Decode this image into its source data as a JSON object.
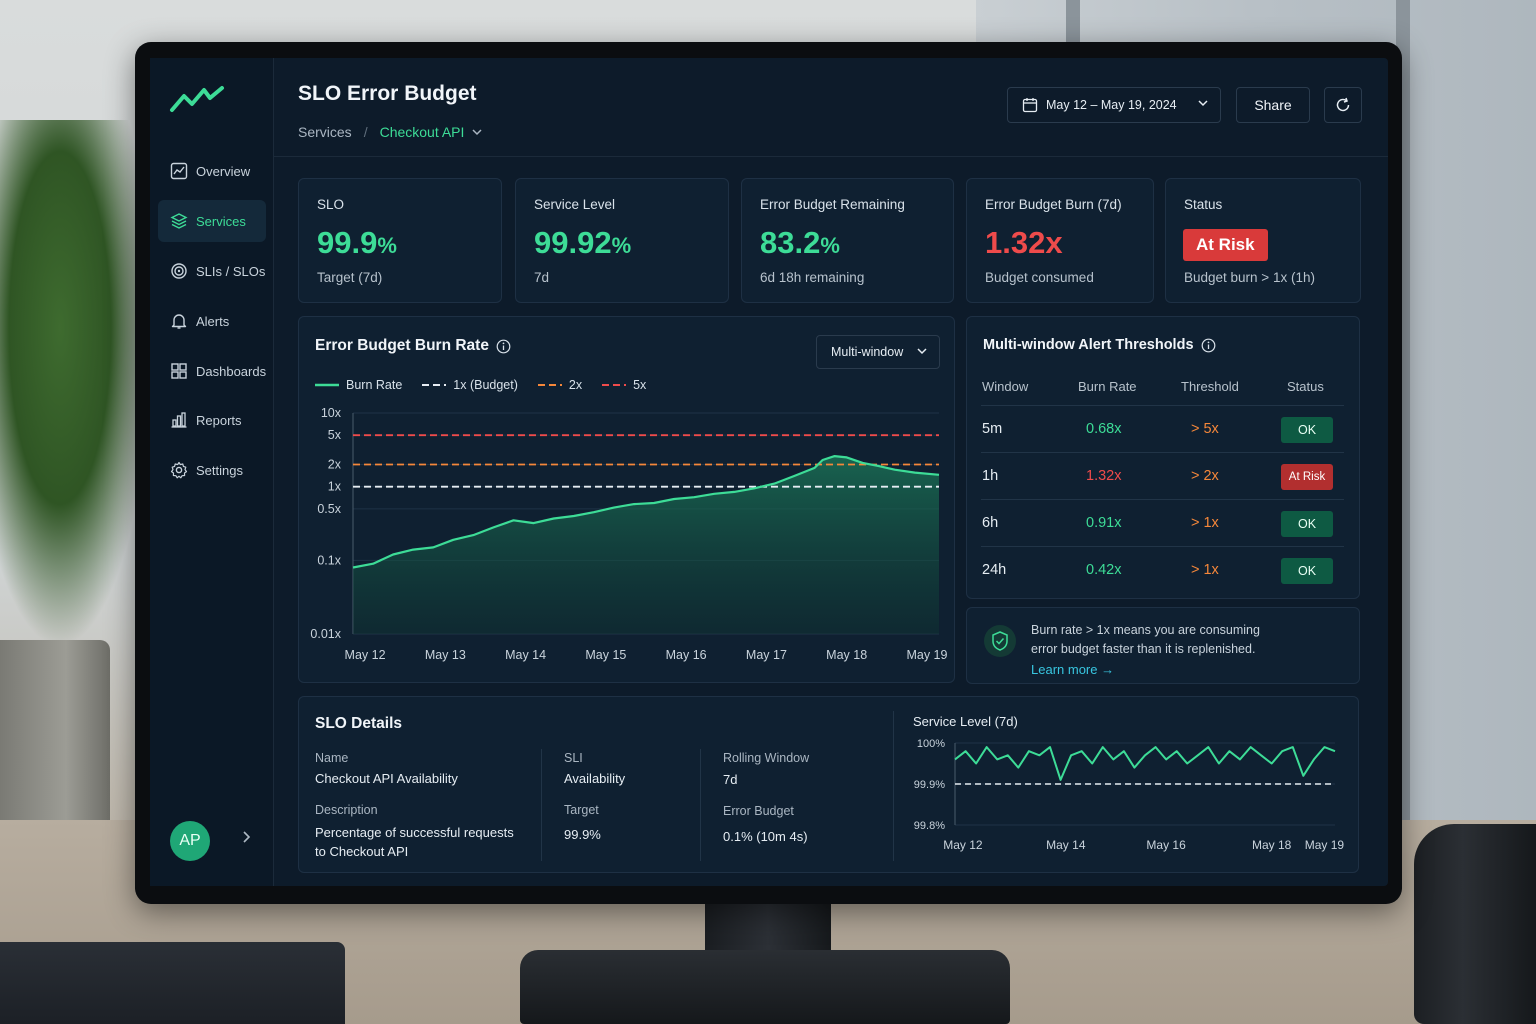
{
  "app": {
    "title": "SLO Error Budget",
    "breadcrumb": {
      "root": "Services",
      "separator": "/",
      "current": "Checkout API"
    },
    "date_range": "May 12 – May 19, 2024",
    "share_label": "Share",
    "accent_color": "#3ddc97",
    "danger_color": "#ef4b4b"
  },
  "sidebar": {
    "items": [
      {
        "label": "Overview",
        "icon": "chart-box-icon",
        "active": false
      },
      {
        "label": "Services",
        "icon": "layers-icon",
        "active": true
      },
      {
        "label": "SLIs / SLOs",
        "icon": "target-icon",
        "active": false
      },
      {
        "label": "Alerts",
        "icon": "bell-icon",
        "active": false
      },
      {
        "label": "Dashboards",
        "icon": "grid-icon",
        "active": false
      },
      {
        "label": "Reports",
        "icon": "bar-chart-icon",
        "active": false
      },
      {
        "label": "Settings",
        "icon": "gear-icon",
        "active": false
      }
    ],
    "user_initials": "AP"
  },
  "stats": [
    {
      "label": "SLO",
      "value": "99.9",
      "unit": "%",
      "sub": "Target (7d)",
      "tone": "green"
    },
    {
      "label": "Service Level",
      "value": "99.92",
      "unit": "%",
      "sub": "7d",
      "tone": "green"
    },
    {
      "label": "Error Budget Remaining",
      "value": "83.2",
      "unit": "%",
      "sub": "6d 18h remaining",
      "tone": "green"
    },
    {
      "label": "Error Budget Burn (7d)",
      "value": "1.32x",
      "unit": "",
      "sub": "Budget consumed",
      "tone": "red"
    },
    {
      "label": "Status",
      "badge": "At Risk",
      "sub": "Budget burn > 1x (1h)"
    }
  ],
  "burn_chart": {
    "title": "Error Budget Burn Rate",
    "window_select": "Multi-window",
    "legend": [
      "Burn Rate",
      "1x (Budget)",
      "2x",
      "5x"
    ]
  },
  "thresholds": {
    "title": "Multi-window Alert Thresholds",
    "columns": [
      "Window",
      "Burn Rate",
      "Threshold",
      "Status"
    ],
    "rows": [
      {
        "window": "5m",
        "burn": "0.68x",
        "threshold": "> 5x",
        "status": "OK",
        "burn_tone": "green"
      },
      {
        "window": "1h",
        "burn": "1.32x",
        "threshold": "> 2x",
        "status": "At Risk",
        "burn_tone": "red"
      },
      {
        "window": "6h",
        "burn": "0.91x",
        "threshold": "> 1x",
        "status": "OK",
        "burn_tone": "green"
      },
      {
        "window": "24h",
        "burn": "0.42x",
        "threshold": "> 1x",
        "status": "OK",
        "burn_tone": "green"
      }
    ],
    "note_line1": "Burn rate > 1x means you are consuming",
    "note_line2": "error budget faster than it is replenished.",
    "learn_more": "Learn more →"
  },
  "details": {
    "title": "SLO Details",
    "name_label": "Name",
    "name": "Checkout API Availability",
    "sli_label": "SLI",
    "sli": "Availability",
    "window_label": "Rolling Window",
    "window": "7d",
    "description_label": "Description",
    "description_line1": "Percentage of successful requests",
    "description_line2": "to Checkout API",
    "target_label": "Target",
    "target": "99.9%",
    "budget_label": "Error Budget",
    "budget": "0.1% (10m 4s)"
  },
  "chart_data": [
    {
      "type": "line",
      "title": "Error Budget Burn Rate",
      "scale": "log",
      "x_ticks": [
        "May 12",
        "May 13",
        "May 14",
        "May 15",
        "May 16",
        "May 17",
        "May 18",
        "May 19"
      ],
      "y_ticks": [
        "10x",
        "5x",
        "2x",
        "1x",
        "0.5x",
        "0.1x",
        "0.01x"
      ],
      "y_tick_values": [
        10,
        5,
        2,
        1,
        0.5,
        0.1,
        0.01
      ],
      "ylim": [
        0.01,
        10
      ],
      "series": [
        {
          "name": "Burn Rate",
          "color": "#3ddc97",
          "fill": true,
          "x": [
            12.0,
            12.25,
            12.5,
            12.75,
            13.0,
            13.25,
            13.5,
            13.75,
            14.0,
            14.25,
            14.5,
            14.75,
            15.0,
            15.25,
            15.5,
            15.75,
            16.0,
            16.25,
            16.5,
            16.75,
            17.0,
            17.25,
            17.5,
            17.75,
            17.85,
            18.0,
            18.15,
            18.35,
            18.55,
            18.75,
            19.0,
            19.3
          ],
          "y": [
            0.08,
            0.09,
            0.12,
            0.14,
            0.15,
            0.19,
            0.22,
            0.28,
            0.35,
            0.32,
            0.37,
            0.4,
            0.45,
            0.52,
            0.58,
            0.6,
            0.68,
            0.72,
            0.8,
            0.85,
            0.95,
            1.1,
            1.4,
            1.8,
            2.3,
            2.6,
            2.5,
            2.1,
            1.9,
            1.7,
            1.55,
            1.45
          ]
        }
      ],
      "reference_lines": [
        {
          "name": "1x (Budget)",
          "value": 1,
          "color": "#e6edf3",
          "style": "dashed"
        },
        {
          "name": "2x",
          "value": 2,
          "color": "#f5873a",
          "style": "dashed"
        },
        {
          "name": "5x",
          "value": 5,
          "color": "#ef4b4b",
          "style": "dashed"
        }
      ],
      "grid": true,
      "legend_position": "top-left"
    },
    {
      "type": "line",
      "title": "Service Level (7d)",
      "x_ticks": [
        "May 12",
        "May 14",
        "May 16",
        "May 18",
        "May 19"
      ],
      "y_ticks": [
        "100%",
        "99.9%",
        "99.8%"
      ],
      "ylim": [
        99.8,
        100
      ],
      "series": [
        {
          "name": "Service Level",
          "color": "#3ddc97",
          "x": [
            12.0,
            12.2,
            12.4,
            12.6,
            12.8,
            13.0,
            13.2,
            13.4,
            13.6,
            13.8,
            14.0,
            14.2,
            14.4,
            14.6,
            14.8,
            15.0,
            15.2,
            15.4,
            15.6,
            15.8,
            16.0,
            16.2,
            16.4,
            16.6,
            16.8,
            17.0,
            17.2,
            17.4,
            17.6,
            17.8,
            18.0,
            18.2,
            18.4,
            18.6,
            18.8,
            19.0,
            19.2
          ],
          "y": [
            99.96,
            99.98,
            99.95,
            99.99,
            99.96,
            99.97,
            99.94,
            99.98,
            99.97,
            99.99,
            99.91,
            99.97,
            99.98,
            99.95,
            99.99,
            99.96,
            99.98,
            99.94,
            99.97,
            99.99,
            99.96,
            99.98,
            99.95,
            99.97,
            99.99,
            99.95,
            99.98,
            99.96,
            99.99,
            99.97,
            99.95,
            99.98,
            99.99,
            99.92,
            99.96,
            99.99,
            99.98
          ]
        }
      ],
      "reference_lines": [
        {
          "name": "SLO",
          "value": 99.9,
          "color": "#e6edf3",
          "style": "dashed"
        }
      ],
      "grid": true
    }
  ]
}
